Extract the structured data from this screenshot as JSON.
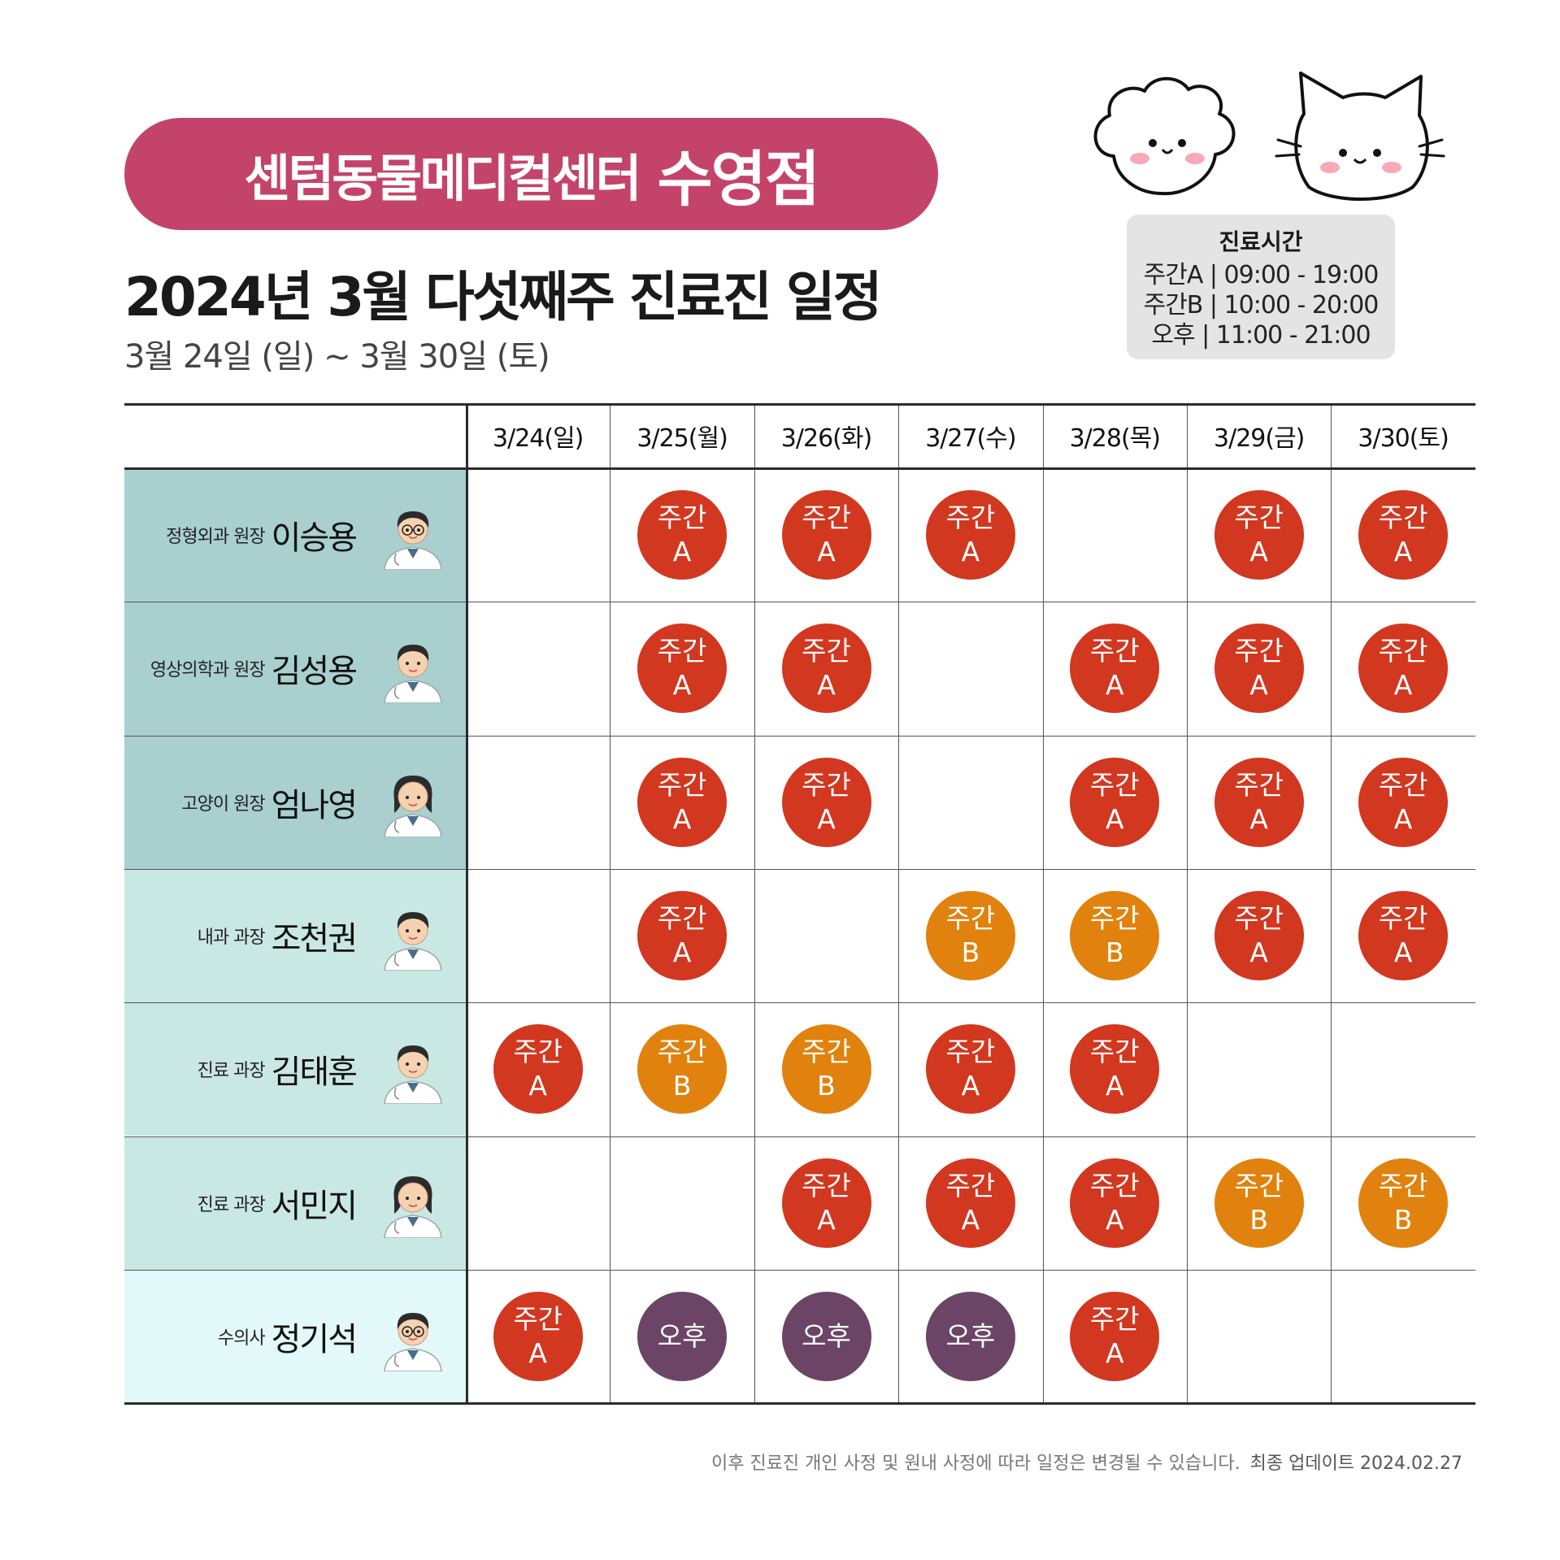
{
  "header": {
    "brand_name": "센텀동물메디컬센터",
    "branch": "수영점",
    "title": "2024년 3월 다섯째주 진료진 일정",
    "date_range": "3월 24일 (일) ~ 3월 30일 (토)"
  },
  "hours": {
    "title": "진료시간",
    "lines": [
      "주간A | 09:00 - 19:00",
      "주간B | 10:00 - 20:00",
      "오후 | 11:00 - 21:00"
    ]
  },
  "days": [
    "3/24(일)",
    "3/25(월)",
    "3/26(화)",
    "3/27(수)",
    "3/28(목)",
    "3/29(금)",
    "3/30(토)"
  ],
  "shift_labels": {
    "A": "주간\nA",
    "B": "주간\nB",
    "P": "오후"
  },
  "colors": {
    "brand": "#c4436a",
    "shift_A": "#d2371f",
    "shift_B": "#e0820d",
    "shift_P": "#6b4466",
    "row_bg": [
      "#a9cfcf",
      "#a9cfcf",
      "#a9cfcf",
      "#c9e7e3",
      "#c9e7e3",
      "#c9e7e3",
      "#e3f8f8"
    ]
  },
  "doctors": [
    {
      "role": "정형외과 원장",
      "name": "이승용",
      "avatar": "doctor-glasses-avatar",
      "schedule": [
        "",
        "A",
        "A",
        "A",
        "",
        "A",
        "A"
      ]
    },
    {
      "role": "영상의학과 원장",
      "name": "김성용",
      "avatar": "doctor-avatar",
      "schedule": [
        "",
        "A",
        "A",
        "",
        "A",
        "A",
        "A"
      ]
    },
    {
      "role": "고양이 원장",
      "name": "엄나영",
      "avatar": "doctor-female-avatar",
      "schedule": [
        "",
        "A",
        "A",
        "",
        "A",
        "A",
        "A"
      ]
    },
    {
      "role": "내과 과장",
      "name": "조천권",
      "avatar": "doctor-avatar",
      "schedule": [
        "",
        "A",
        "",
        "B",
        "B",
        "A",
        "A"
      ]
    },
    {
      "role": "진료 과장",
      "name": "김태훈",
      "avatar": "doctor-avatar",
      "schedule": [
        "A",
        "B",
        "B",
        "A",
        "A",
        "",
        ""
      ]
    },
    {
      "role": "진료 과장",
      "name": "서민지",
      "avatar": "doctor-female-avatar",
      "schedule": [
        "",
        "",
        "A",
        "A",
        "A",
        "B",
        "B"
      ]
    },
    {
      "role": "수의사",
      "name": "정기석",
      "avatar": "doctor-glasses-avatar",
      "schedule": [
        "A",
        "P",
        "P",
        "P",
        "A",
        "",
        ""
      ]
    }
  ],
  "footer": {
    "notice": "이후 진료진 개인 사정 및 원내 사정에 따라 일정은 변경될 수 있습니다.",
    "updated": "최종 업데이트  2024.02.27"
  },
  "icons": {
    "pets": [
      "dog-face-icon",
      "cat-face-icon"
    ]
  }
}
